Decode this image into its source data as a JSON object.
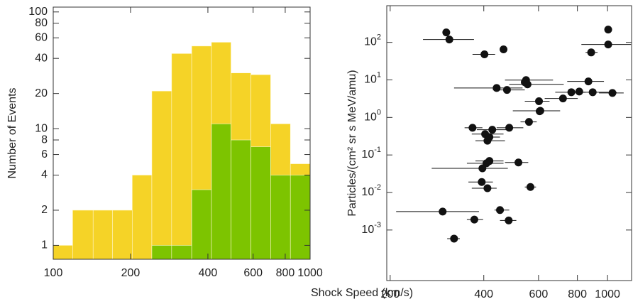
{
  "chart_data": [
    {
      "type": "histogram",
      "ylabel": "Number of Events",
      "xlabel": "Shock Speed (km/s)",
      "log_x": true,
      "log_y": true,
      "bins": [
        100,
        119,
        143,
        170,
        203,
        242,
        289,
        346,
        413,
        492,
        588,
        702,
        838,
        1000
      ],
      "series": [
        {
          "color": "#f5d327",
          "values": [
            1,
            2,
            2,
            2,
            4,
            21,
            44,
            51,
            55,
            30,
            29,
            11,
            5
          ]
        },
        {
          "color": "#7dc400",
          "values": [
            null,
            null,
            null,
            null,
            null,
            1,
            1,
            3,
            11,
            8,
            7,
            4,
            4
          ]
        }
      ],
      "xlim": [
        100,
        1000
      ],
      "xticks": [
        100,
        200,
        400,
        600,
        800,
        1000
      ],
      "ylim": [
        0.76,
        110
      ],
      "yticks": [
        1,
        2,
        4,
        6,
        8,
        10,
        20,
        40,
        60,
        80,
        100
      ]
    },
    {
      "type": "scatter",
      "ylabel": "Particles/(cm² sr s MeV/amu)",
      "log_x": true,
      "log_y": true,
      "color": "#111111",
      "x": [
        402,
        303,
        310,
        463,
        1005,
        1005,
        886,
        547,
        542,
        868,
        440,
        475,
        553,
        765,
        811,
        896,
        1037,
        719,
        602,
        608,
        605,
        559,
        483,
        426,
        368,
        404,
        417,
        411,
        417,
        408,
        517,
        396,
        394,
        411,
        565,
        295,
        373,
        451,
        481,
        321
      ],
      "y": [
        48,
        184,
        119,
        65,
        219,
        88,
        54,
        9.9,
        8.7,
        9.1,
        6.1,
        5.4,
        7.6,
        4.7,
        4.9,
        4.7,
        4.5,
        3.2,
        2.7,
        1.5,
        1.46,
        0.76,
        0.53,
        0.47,
        0.53,
        0.36,
        0.3,
        0.24,
        0.069,
        0.06,
        0.063,
        0.044,
        0.019,
        0.013,
        0.014,
        0.0031,
        0.0019,
        0.0034,
        0.0018,
        0.00059
      ],
      "x_err_low": [
        368,
        null,
        255,
        null,
        null,
        824,
        850,
        468,
        null,
        742,
        321,
        428,
        483,
        679,
        null,
        782,
        939,
        628,
        542,
        496,
        null,
        525,
        440,
        380,
        347,
        366,
        396,
        376,
        376,
        353,
        468,
        272,
        357,
        366,
        542,
        209,
        353,
        433,
        451,
        305
      ],
      "x_err_high": [
        435,
        null,
        372,
        null,
        null,
        1190,
        929,
        668,
        null,
        974,
        533,
        542,
        723,
        850,
        null,
        1070,
        1127,
        802,
        651,
        704,
        null,
        592,
        536,
        478,
        396,
        463,
        451,
        468,
        463,
        463,
        556,
        478,
        428,
        440,
        589,
        386,
        398,
        483,
        509,
        335
      ],
      "xlim": [
        195,
        1195
      ],
      "xticks": [
        200,
        400,
        600,
        800,
        1000
      ],
      "ylim": [
        4.5e-05,
        950
      ],
      "yticks": [
        {
          "value": 0.001,
          "label": "10",
          "exponent": "-3"
        },
        {
          "value": 0.01,
          "label": "10",
          "exponent": "-2"
        },
        {
          "value": 0.1,
          "label": "10",
          "exponent": "-1"
        },
        {
          "value": 1,
          "label": "10",
          "exponent": "0"
        },
        {
          "value": 10,
          "label": "10",
          "exponent": "1"
        },
        {
          "value": 100,
          "label": "10",
          "exponent": "2"
        }
      ]
    }
  ]
}
